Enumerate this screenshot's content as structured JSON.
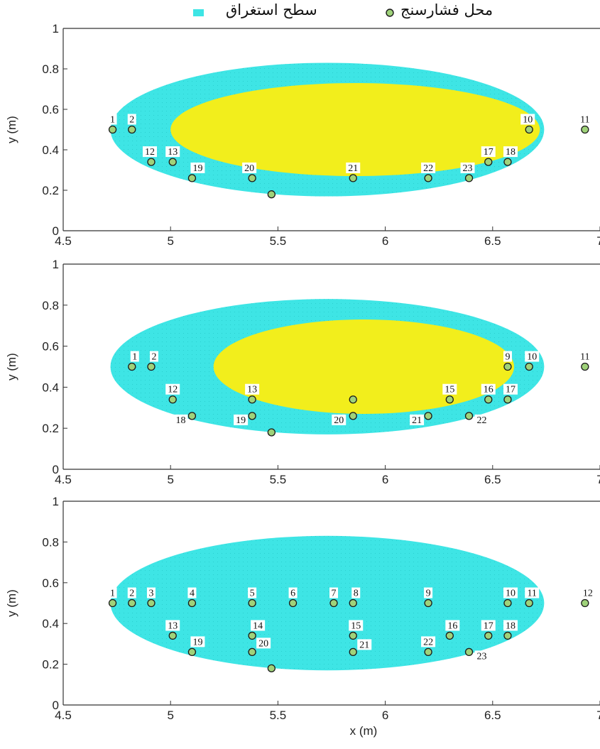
{
  "legend": {
    "gauge_label": "محل فشارسنج",
    "area_label": "سطح استغراق"
  },
  "colors": {
    "wetted_surface": "#3ee5e5",
    "inner_region": "#f2ee1c",
    "gauge_fill": "#9fd27a",
    "gauge_stroke": "#1a1a1a",
    "axis": "#333333"
  },
  "chart_data": [
    {
      "type": "scatter",
      "xlim": [
        4.5,
        7
      ],
      "ylim": [
        0,
        1
      ],
      "x_ticks": [
        "4.5",
        "5",
        "5.5",
        "6",
        "6.5",
        "7"
      ],
      "y_ticks": [
        "0",
        "0.2",
        "0.4",
        "0.6",
        "0.8",
        "1"
      ],
      "xlabel": "",
      "ylabel": "y (m)",
      "wetted_region": {
        "x_min": 4.72,
        "x_max": 6.74,
        "y_min": 0.17,
        "y_max": 0.83
      },
      "inner_region": {
        "x_min": 5.0,
        "x_max": 6.72,
        "y_min": 0.27,
        "y_max": 0.73
      },
      "gauges": [
        {
          "label": "1",
          "x": 4.73,
          "y": 0.5
        },
        {
          "label": "2",
          "x": 4.82,
          "y": 0.5
        },
        {
          "label": "12",
          "x": 4.91,
          "y": 0.34
        },
        {
          "label": "13",
          "x": 5.01,
          "y": 0.34
        },
        {
          "label": "19",
          "x": 5.1,
          "y": 0.26
        },
        {
          "label": "20",
          "x": 5.38,
          "y": 0.26
        },
        {
          "label": "",
          "x": 5.47,
          "y": 0.18
        },
        {
          "label": "21",
          "x": 5.85,
          "y": 0.26
        },
        {
          "label": "22",
          "x": 6.2,
          "y": 0.26
        },
        {
          "label": "23",
          "x": 6.39,
          "y": 0.26
        },
        {
          "label": "17",
          "x": 6.48,
          "y": 0.34
        },
        {
          "label": "18",
          "x": 6.57,
          "y": 0.34
        },
        {
          "label": "10",
          "x": 6.67,
          "y": 0.5
        },
        {
          "label": "11",
          "x": 6.93,
          "y": 0.5
        }
      ]
    },
    {
      "type": "scatter",
      "xlim": [
        4.5,
        7
      ],
      "ylim": [
        0,
        1
      ],
      "x_ticks": [
        "4.5",
        "5",
        "5.5",
        "6",
        "6.5",
        "7"
      ],
      "y_ticks": [
        "0",
        "0.2",
        "0.4",
        "0.6",
        "0.8",
        "1"
      ],
      "xlabel": "",
      "ylabel": "y (m)",
      "wetted_region": {
        "x_min": 4.72,
        "x_max": 6.74,
        "y_min": 0.17,
        "y_max": 0.83
      },
      "inner_region": {
        "x_min": 5.2,
        "x_max": 6.6,
        "y_min": 0.27,
        "y_max": 0.73
      },
      "gauges": [
        {
          "label": "1",
          "x": 4.82,
          "y": 0.5
        },
        {
          "label": "2",
          "x": 4.91,
          "y": 0.5
        },
        {
          "label": "12",
          "x": 5.01,
          "y": 0.34
        },
        {
          "label": "18",
          "x": 5.1,
          "y": 0.26
        },
        {
          "label": "13",
          "x": 5.38,
          "y": 0.34
        },
        {
          "label": "19",
          "x": 5.38,
          "y": 0.26
        },
        {
          "label": "",
          "x": 5.47,
          "y": 0.18
        },
        {
          "label": "",
          "x": 5.85,
          "y": 0.34
        },
        {
          "label": "20",
          "x": 5.85,
          "y": 0.26
        },
        {
          "label": "21",
          "x": 6.2,
          "y": 0.26
        },
        {
          "label": "15",
          "x": 6.3,
          "y": 0.34
        },
        {
          "label": "22",
          "x": 6.39,
          "y": 0.26
        },
        {
          "label": "16",
          "x": 6.48,
          "y": 0.34
        },
        {
          "label": "17",
          "x": 6.57,
          "y": 0.34
        },
        {
          "label": "9",
          "x": 6.57,
          "y": 0.5
        },
        {
          "label": "10",
          "x": 6.67,
          "y": 0.5
        },
        {
          "label": "11",
          "x": 6.93,
          "y": 0.5
        }
      ]
    },
    {
      "type": "scatter",
      "xlim": [
        4.5,
        7
      ],
      "ylim": [
        0,
        1
      ],
      "x_ticks": [
        "4.5",
        "5",
        "5.5",
        "6",
        "6.5",
        "7"
      ],
      "y_ticks": [
        "0",
        "0.2",
        "0.4",
        "0.6",
        "0.8",
        "1"
      ],
      "xlabel": "x (m)",
      "ylabel": "y (m)",
      "wetted_region": {
        "x_min": 4.72,
        "x_max": 6.74,
        "y_min": 0.17,
        "y_max": 0.83
      },
      "gauges": [
        {
          "label": "1",
          "x": 4.73,
          "y": 0.5
        },
        {
          "label": "2",
          "x": 4.82,
          "y": 0.5
        },
        {
          "label": "3",
          "x": 4.91,
          "y": 0.5
        },
        {
          "label": "4",
          "x": 5.1,
          "y": 0.5
        },
        {
          "label": "5",
          "x": 5.38,
          "y": 0.5
        },
        {
          "label": "6",
          "x": 5.57,
          "y": 0.5
        },
        {
          "label": "7",
          "x": 5.76,
          "y": 0.5
        },
        {
          "label": "8",
          "x": 5.85,
          "y": 0.5
        },
        {
          "label": "9",
          "x": 6.2,
          "y": 0.5
        },
        {
          "label": "10",
          "x": 6.57,
          "y": 0.5
        },
        {
          "label": "11",
          "x": 6.67,
          "y": 0.5
        },
        {
          "label": "12",
          "x": 6.93,
          "y": 0.5
        },
        {
          "label": "13",
          "x": 5.01,
          "y": 0.34
        },
        {
          "label": "14",
          "x": 5.38,
          "y": 0.34
        },
        {
          "label": "15",
          "x": 5.85,
          "y": 0.34
        },
        {
          "label": "16",
          "x": 6.3,
          "y": 0.34
        },
        {
          "label": "17",
          "x": 6.48,
          "y": 0.34
        },
        {
          "label": "18",
          "x": 6.57,
          "y": 0.34
        },
        {
          "label": "19",
          "x": 5.1,
          "y": 0.26
        },
        {
          "label": "20",
          "x": 5.38,
          "y": 0.26
        },
        {
          "label": "21",
          "x": 5.85,
          "y": 0.26
        },
        {
          "label": "22",
          "x": 6.2,
          "y": 0.26
        },
        {
          "label": "23",
          "x": 6.39,
          "y": 0.26
        },
        {
          "label": "",
          "x": 5.47,
          "y": 0.18
        }
      ]
    }
  ]
}
